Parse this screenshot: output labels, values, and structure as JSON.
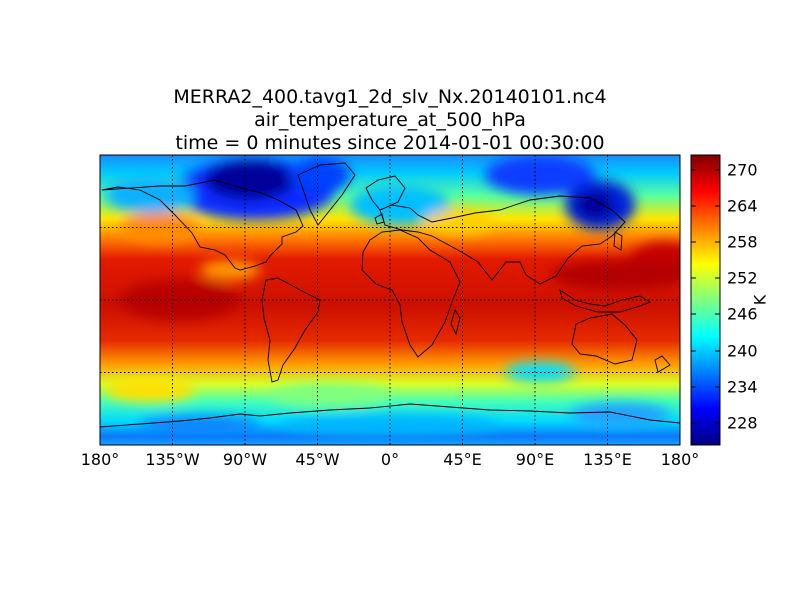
{
  "title": {
    "line1": "MERRA2_400.tavg1_2d_slv_Nx.20140101.nc4",
    "line2": "air_temperature_at_500_hPa",
    "line3": "time = 0 minutes since 2014-01-01 00:30:00"
  },
  "map": {
    "projection": "equirectangular",
    "lon_range": [
      -180,
      180
    ],
    "lat_range": [
      -90,
      90
    ],
    "gridlines": "dotted",
    "lon_gridlines": [
      -135,
      -90,
      -45,
      0,
      45,
      90,
      135
    ],
    "lat_gridlines": [
      -45,
      0,
      45
    ],
    "variable": "air_temperature_at_500_hPa",
    "colormap": "jet"
  },
  "x_ticks": [
    "180°",
    "135°W",
    "90°W",
    "45°W",
    "0°",
    "45°E",
    "90°E",
    "135°E",
    "180°"
  ],
  "colorbar": {
    "label": "K",
    "ticks": [
      "228",
      "234",
      "240",
      "246",
      "252",
      "258",
      "264",
      "270"
    ],
    "min": 224,
    "max": 272,
    "colors": [
      "#00007f",
      "#0000ff",
      "#007fff",
      "#00ffff",
      "#7fff7f",
      "#ffff00",
      "#ff7f00",
      "#ff0000",
      "#7f0000"
    ]
  }
}
